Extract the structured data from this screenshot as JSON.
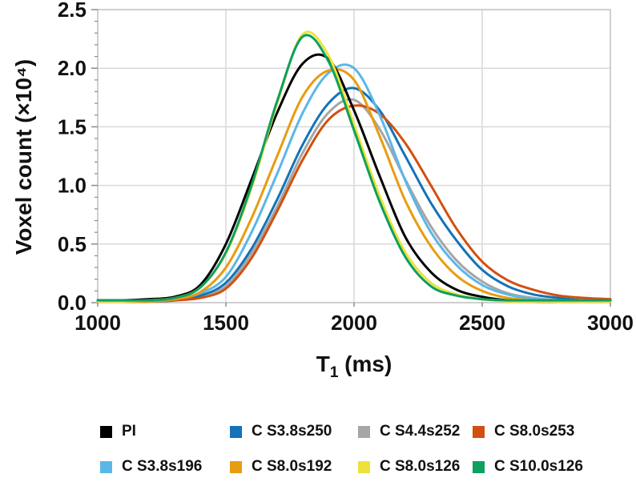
{
  "figure": {
    "y_axis_title": "Voxel count (×10⁴)",
    "x_axis_title": {
      "prefix": "T",
      "sub": "1",
      "suffix": " (ms)"
    }
  },
  "chart_data": {
    "type": "line",
    "title": "",
    "xlabel": "T1 (ms)",
    "ylabel": "Voxel count (x10^4)",
    "xlim": [
      1000,
      3000
    ],
    "ylim": [
      0,
      2.5
    ],
    "x_ticks": [
      1000,
      1500,
      2000,
      2500,
      3000
    ],
    "y_ticks": [
      0.0,
      0.5,
      1.0,
      1.5,
      2.0,
      2.5
    ],
    "y_minor_step": 0.1,
    "grid": true,
    "legend_position": "bottom",
    "x": [
      1000,
      1100,
      1200,
      1300,
      1400,
      1500,
      1600,
      1700,
      1800,
      1900,
      2000,
      2100,
      2200,
      2300,
      2400,
      2500,
      2600,
      2700,
      2800,
      2900,
      3000
    ],
    "series": [
      {
        "name": "PI",
        "color": "#000000",
        "peak_x": 1845,
        "peak_y": 2.12,
        "values": [
          0.02,
          0.02,
          0.03,
          0.05,
          0.15,
          0.5,
          1.05,
          1.62,
          2.04,
          2.08,
          1.64,
          1.08,
          0.56,
          0.26,
          0.11,
          0.05,
          0.02,
          0.01,
          0.01,
          0.01,
          0.01
        ]
      },
      {
        "name": "C S3.8s250",
        "color": "#1373B8",
        "peak_x": 2000,
        "peak_y": 1.83,
        "values": [
          0.01,
          0.01,
          0.01,
          0.02,
          0.06,
          0.17,
          0.46,
          0.88,
          1.35,
          1.7,
          1.83,
          1.64,
          1.25,
          0.85,
          0.53,
          0.28,
          0.14,
          0.07,
          0.04,
          0.02,
          0.02
        ]
      },
      {
        "name": "C S4.4s252",
        "color": "#A6A6A6",
        "peak_x": 1985,
        "peak_y": 1.73,
        "values": [
          0.01,
          0.01,
          0.01,
          0.02,
          0.05,
          0.14,
          0.42,
          0.82,
          1.28,
          1.62,
          1.73,
          1.48,
          1.05,
          0.65,
          0.36,
          0.18,
          0.08,
          0.04,
          0.02,
          0.01,
          0.01
        ]
      },
      {
        "name": "C S8.0s253",
        "color": "#D2500E",
        "peak_x": 2010,
        "peak_y": 1.68,
        "values": [
          0.01,
          0.01,
          0.01,
          0.02,
          0.04,
          0.12,
          0.38,
          0.78,
          1.22,
          1.56,
          1.68,
          1.61,
          1.36,
          1.0,
          0.63,
          0.35,
          0.19,
          0.11,
          0.06,
          0.04,
          0.03
        ]
      },
      {
        "name": "C S3.8s196",
        "color": "#5BB7E8",
        "peak_x": 1965,
        "peak_y": 2.02,
        "values": [
          0.01,
          0.01,
          0.01,
          0.03,
          0.08,
          0.22,
          0.6,
          1.1,
          1.62,
          1.96,
          2.0,
          1.6,
          1.04,
          0.6,
          0.32,
          0.15,
          0.07,
          0.03,
          0.02,
          0.01,
          0.01
        ]
      },
      {
        "name": "C S8.0s192",
        "color": "#E89C10",
        "peak_x": 1935,
        "peak_y": 2.0,
        "values": [
          0.01,
          0.01,
          0.01,
          0.03,
          0.09,
          0.3,
          0.72,
          1.25,
          1.76,
          1.98,
          1.9,
          1.42,
          0.87,
          0.48,
          0.23,
          0.1,
          0.04,
          0.02,
          0.01,
          0.01,
          0.01
        ]
      },
      {
        "name": "C S8.0s126",
        "color": "#EEE13C",
        "peak_x": 1810,
        "peak_y": 2.31,
        "values": [
          0.01,
          0.01,
          0.02,
          0.04,
          0.13,
          0.42,
          0.98,
          1.7,
          2.29,
          2.11,
          1.52,
          0.91,
          0.43,
          0.17,
          0.07,
          0.03,
          0.01,
          0.01,
          0.01,
          0.01,
          0.01
        ]
      },
      {
        "name": "C S10.0s126",
        "color": "#0DA05E",
        "peak_x": 1805,
        "peak_y": 2.28,
        "values": [
          0.02,
          0.02,
          0.02,
          0.04,
          0.13,
          0.43,
          1.0,
          1.72,
          2.27,
          2.06,
          1.47,
          0.86,
          0.39,
          0.14,
          0.06,
          0.03,
          0.02,
          0.02,
          0.02,
          0.02,
          0.02
        ]
      }
    ],
    "legend_rows": [
      [
        "PI",
        "C S3.8s250",
        "C S4.4s252",
        "C S8.0s253"
      ],
      [
        "C S3.8s196",
        "C S8.0s192",
        "C S8.0s126",
        "C S10.0s126"
      ]
    ],
    "draw_order": [
      "C S4.4s252",
      "C S3.8s250",
      "C S8.0s253",
      "C S3.8s196",
      "C S8.0s192",
      "PI",
      "C S8.0s126",
      "C S10.0s126"
    ],
    "colors": {
      "grid": "#D9D9D9",
      "border": "#BFBFBF",
      "tick": "#8C8C8C"
    }
  }
}
